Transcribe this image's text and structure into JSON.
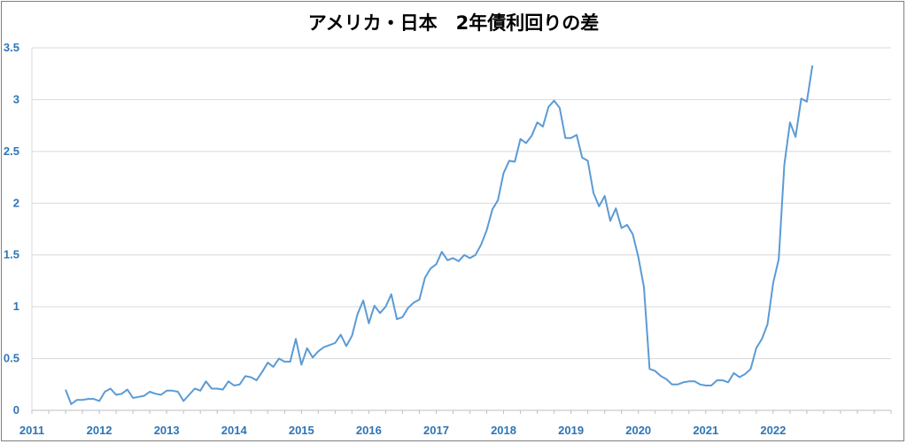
{
  "chart_data": {
    "type": "line",
    "title": "アメリカ・日本　2年債利回りの差",
    "xlabel": "",
    "ylabel": "",
    "ylim": [
      0,
      3.5
    ],
    "y_ticks": [
      "0",
      "0.5",
      "1",
      "1.5",
      "2",
      "2.5",
      "3",
      "3.5"
    ],
    "x_ticks": [
      "2011",
      "2012",
      "2013",
      "2014",
      "2015",
      "2016",
      "2017",
      "2018",
      "2019",
      "2020",
      "2021",
      "2022"
    ],
    "grid": "horizontal",
    "legend": "none",
    "line_color": "#5b9bd5",
    "tick_color": "#2e75b6",
    "series": [
      {
        "x": [
          "2011-07",
          "2011-08",
          "2011-09",
          "2011-10",
          "2011-11",
          "2011-12",
          "2012-01",
          "2012-02",
          "2012-03",
          "2012-04",
          "2012-05",
          "2012-06",
          "2012-07",
          "2012-08",
          "2012-09",
          "2012-10",
          "2012-11",
          "2012-12",
          "2013-01",
          "2013-02",
          "2013-03",
          "2013-04",
          "2013-05",
          "2013-06",
          "2013-07",
          "2013-08",
          "2013-09",
          "2013-10",
          "2013-11",
          "2013-12",
          "2014-01",
          "2014-02",
          "2014-03",
          "2014-04",
          "2014-05",
          "2014-06",
          "2014-07",
          "2014-08",
          "2014-09",
          "2014-10",
          "2014-11",
          "2014-12",
          "2015-01",
          "2015-02",
          "2015-03",
          "2015-04",
          "2015-05",
          "2015-06",
          "2015-07",
          "2015-08",
          "2015-09",
          "2015-10",
          "2015-11",
          "2015-12",
          "2016-01",
          "2016-02",
          "2016-03",
          "2016-04",
          "2016-05",
          "2016-06",
          "2016-07",
          "2016-08",
          "2016-09",
          "2016-10",
          "2016-11",
          "2016-12",
          "2017-01",
          "2017-02",
          "2017-03",
          "2017-04",
          "2017-05",
          "2017-06",
          "2017-07",
          "2017-08",
          "2017-09",
          "2017-10",
          "2017-11",
          "2017-12",
          "2018-01",
          "2018-02",
          "2018-03",
          "2018-04",
          "2018-05",
          "2018-06",
          "2018-07",
          "2018-08",
          "2018-09",
          "2018-10",
          "2018-11",
          "2018-12",
          "2019-01",
          "2019-02",
          "2019-03",
          "2019-04",
          "2019-05",
          "2019-06",
          "2019-07",
          "2019-08",
          "2019-09",
          "2019-10",
          "2019-11",
          "2019-12",
          "2020-01",
          "2020-02",
          "2020-03",
          "2020-04",
          "2020-05",
          "2020-06",
          "2020-07",
          "2020-08",
          "2020-09",
          "2020-10",
          "2020-11",
          "2020-12",
          "2021-01",
          "2021-02",
          "2021-03",
          "2021-04",
          "2021-05",
          "2021-06",
          "2021-07",
          "2021-08",
          "2021-09",
          "2021-10",
          "2021-11",
          "2021-12",
          "2022-01",
          "2022-02",
          "2022-03",
          "2022-04",
          "2022-05",
          "2022-06",
          "2022-07",
          "2022-08"
        ],
        "values": [
          0.2,
          0.06,
          0.1,
          0.1,
          0.11,
          0.11,
          0.09,
          0.18,
          0.21,
          0.15,
          0.16,
          0.2,
          0.12,
          0.13,
          0.14,
          0.18,
          0.16,
          0.15,
          0.19,
          0.19,
          0.18,
          0.09,
          0.15,
          0.21,
          0.19,
          0.28,
          0.21,
          0.21,
          0.2,
          0.28,
          0.24,
          0.25,
          0.33,
          0.32,
          0.29,
          0.37,
          0.46,
          0.42,
          0.5,
          0.47,
          0.47,
          0.69,
          0.44,
          0.6,
          0.51,
          0.57,
          0.61,
          0.63,
          0.65,
          0.73,
          0.62,
          0.72,
          0.93,
          1.06,
          0.84,
          1.01,
          0.94,
          1.0,
          1.12,
          0.88,
          0.9,
          0.99,
          1.04,
          1.07,
          1.28,
          1.37,
          1.41,
          1.53,
          1.45,
          1.47,
          1.44,
          1.5,
          1.47,
          1.5,
          1.6,
          1.74,
          1.94,
          2.03,
          2.29,
          2.41,
          2.4,
          2.62,
          2.58,
          2.65,
          2.78,
          2.74,
          2.93,
          2.99,
          2.92,
          2.63,
          2.63,
          2.66,
          2.44,
          2.41,
          2.1,
          1.97,
          2.07,
          1.83,
          1.95,
          1.76,
          1.79,
          1.7,
          1.48,
          1.19,
          0.4,
          0.38,
          0.33,
          0.3,
          0.25,
          0.25,
          0.27,
          0.28,
          0.28,
          0.25,
          0.24,
          0.24,
          0.29,
          0.29,
          0.27,
          0.36,
          0.32,
          0.35,
          0.4,
          0.6,
          0.69,
          0.83,
          1.23,
          1.46,
          2.37,
          2.78,
          2.64,
          3.01,
          2.98,
          3.33
        ]
      }
    ]
  }
}
